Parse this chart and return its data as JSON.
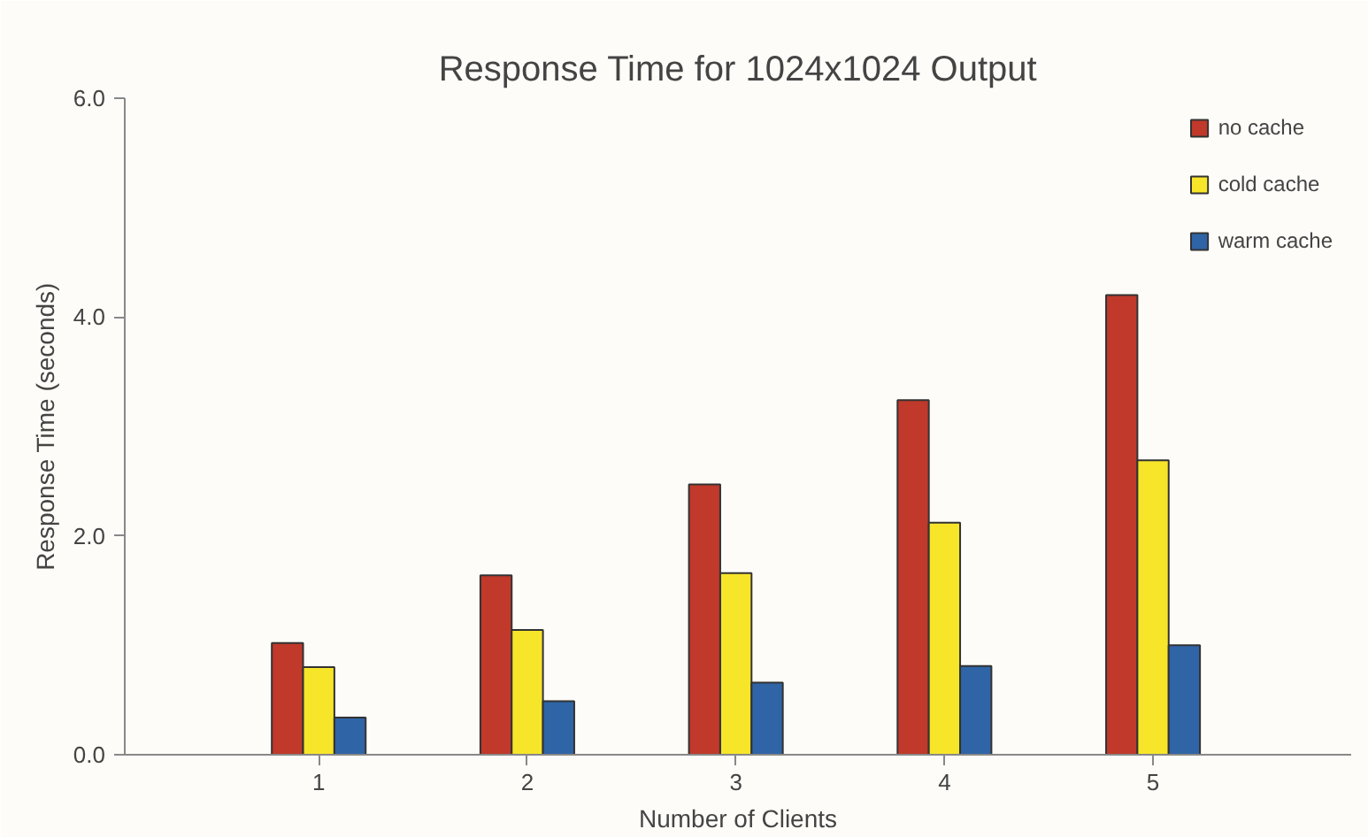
{
  "chart_data": {
    "type": "bar",
    "title": "Response Time for 1024x1024 Output",
    "xlabel": "Number of Clients",
    "ylabel": "Response Time (seconds)",
    "categories": [
      "1",
      "2",
      "3",
      "4",
      "5"
    ],
    "series": [
      {
        "name": "no cache",
        "color": "#c0392b",
        "values": [
          1.02,
          1.64,
          2.47,
          3.24,
          4.2
        ]
      },
      {
        "name": "cold cache",
        "color": "#f7e52a",
        "values": [
          0.8,
          1.14,
          1.66,
          2.12,
          2.69
        ]
      },
      {
        "name": "warm cache",
        "color": "#2f64a6",
        "values": [
          0.34,
          0.49,
          0.66,
          0.81,
          1.0
        ]
      }
    ],
    "ylim": [
      0,
      6
    ],
    "yticks": [
      {
        "value": 0,
        "label": "0.0"
      },
      {
        "value": 2,
        "label": "2.0"
      },
      {
        "value": 4,
        "label": "4.0"
      },
      {
        "value": 6,
        "label": "6.0"
      }
    ],
    "grid": false,
    "legend": "top right"
  }
}
